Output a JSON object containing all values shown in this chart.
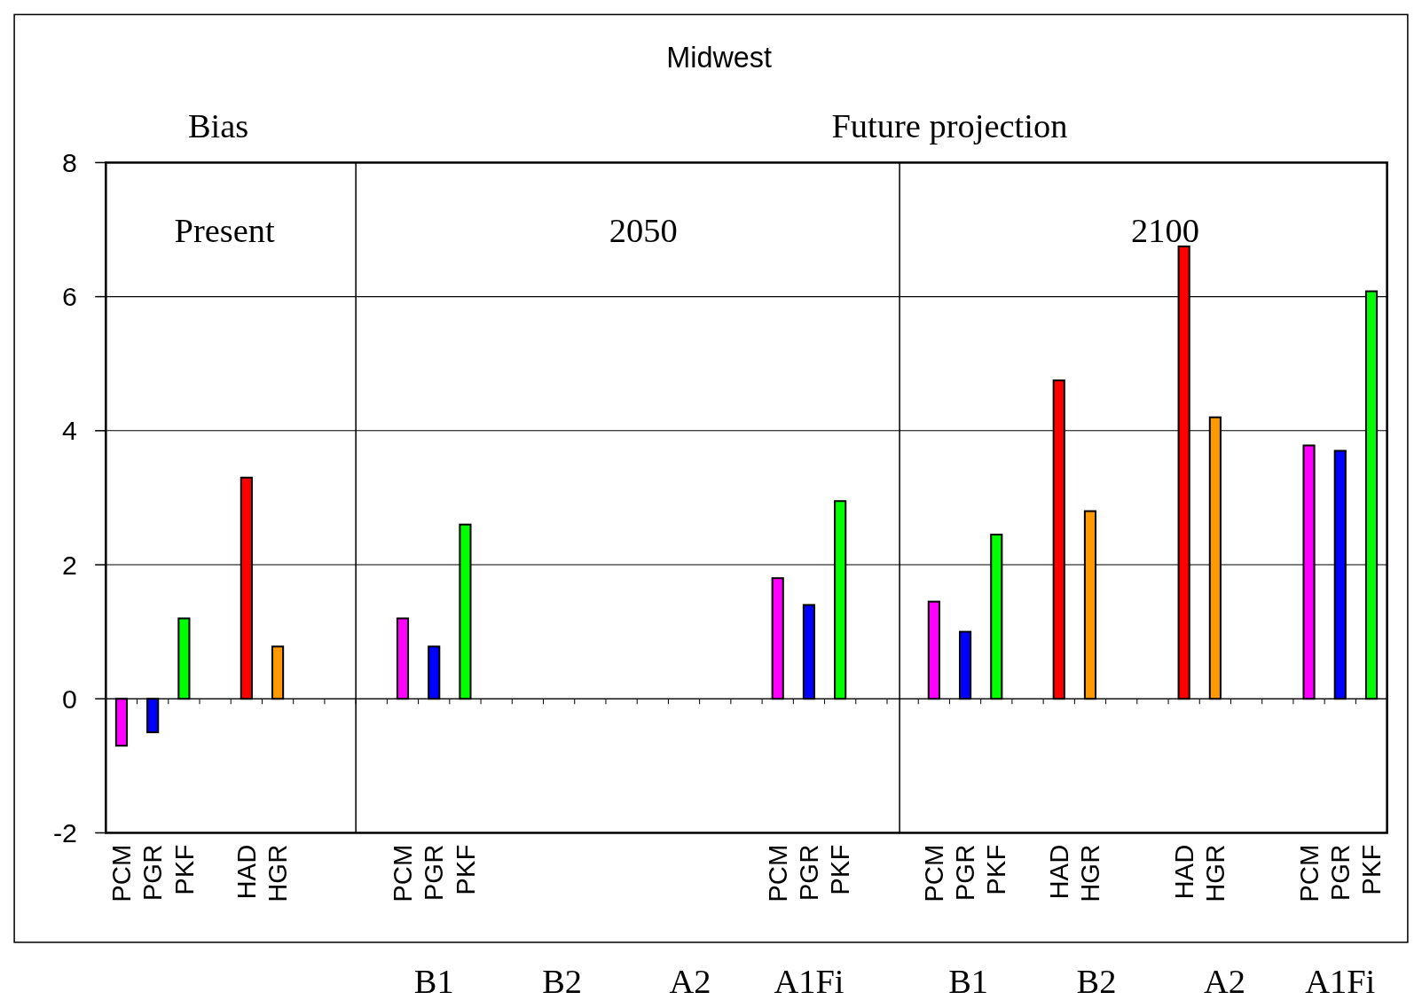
{
  "chart_data": {
    "type": "bar",
    "title": "Midwest",
    "categories": [
      "PCM",
      "PGR",
      "PKF",
      null,
      "HAD",
      "HGR",
      null,
      null,
      null,
      "PCM",
      "PGR",
      "PKF",
      null,
      null,
      null,
      null,
      null,
      null,
      null,
      null,
      null,
      "PCM",
      "PGR",
      "PKF",
      null,
      null,
      "PCM",
      "PGR",
      "PKF",
      null,
      "HAD",
      "HGR",
      null,
      null,
      "HAD",
      "HGR",
      null,
      null,
      "PCM",
      "PGR",
      "PKF"
    ],
    "values": [
      -0.7,
      -0.5,
      1.2,
      null,
      3.3,
      0.78,
      null,
      null,
      null,
      1.2,
      0.78,
      2.6,
      null,
      null,
      null,
      null,
      null,
      null,
      null,
      null,
      null,
      1.8,
      1.4,
      2.95,
      null,
      null,
      1.45,
      1.0,
      2.45,
      null,
      4.75,
      2.8,
      null,
      null,
      6.75,
      4.2,
      null,
      null,
      3.78,
      3.7,
      6.08
    ],
    "colors": [
      "#ff00ff",
      "#0000ff",
      "#00ff00",
      null,
      "#ff0000",
      "#ff9900",
      null,
      null,
      null,
      "#ff00ff",
      "#0000ff",
      "#00ff00",
      null,
      null,
      null,
      null,
      null,
      null,
      null,
      null,
      null,
      "#ff00ff",
      "#0000ff",
      "#00ff00",
      null,
      null,
      "#ff00ff",
      "#0000ff",
      "#00ff00",
      null,
      "#ff0000",
      "#ff9900",
      null,
      null,
      "#ff0000",
      "#ff9900",
      null,
      null,
      "#ff00ff",
      "#0000ff",
      "#00ff00"
    ],
    "ylim": [
      -2,
      8
    ],
    "yticks": [
      -2,
      0,
      2,
      4,
      6,
      8
    ],
    "grid": true,
    "annotations": [
      "Bias",
      "Future projection",
      "Present",
      "2050",
      "2100",
      "B1",
      "B2",
      "A2",
      "A1Fi",
      "B1",
      "B2",
      "A2",
      "A1Fi"
    ]
  }
}
